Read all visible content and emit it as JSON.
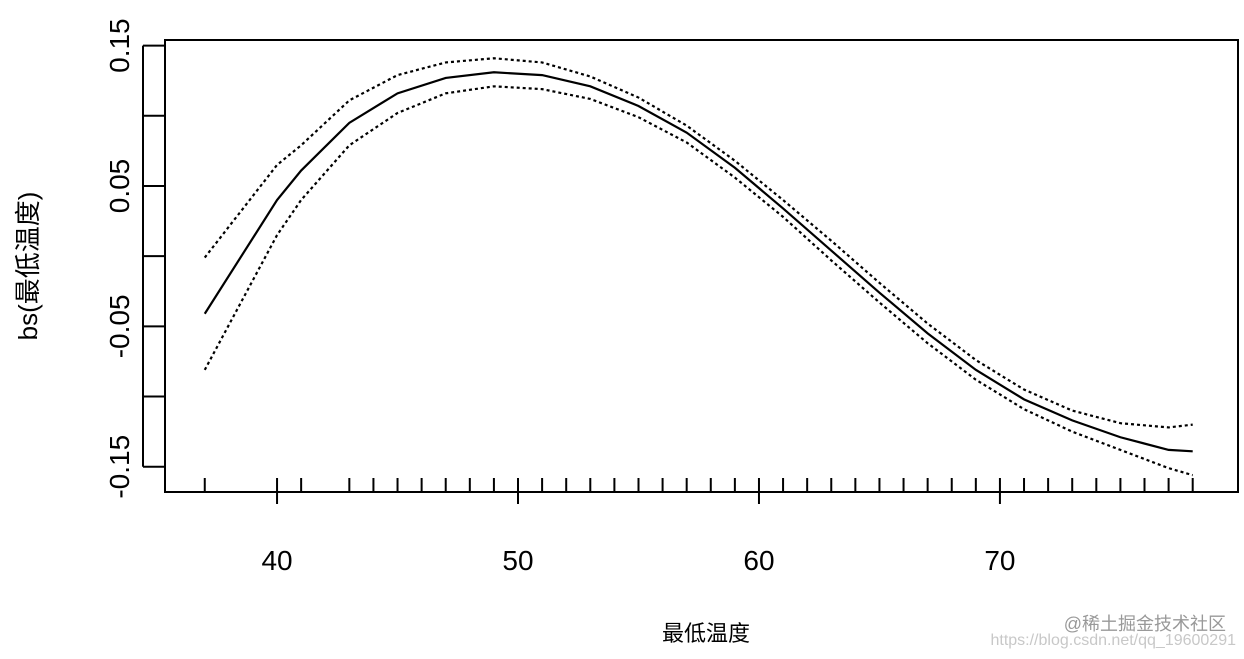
{
  "chart_data": {
    "type": "line",
    "xlabel": "最低温度",
    "ylabel": "bs(最低温度)",
    "x": [
      37,
      40,
      41,
      43,
      45,
      47,
      49,
      51,
      53,
      55,
      57,
      59,
      61,
      63,
      65,
      67,
      69,
      71,
      73,
      75,
      77,
      78
    ],
    "series": [
      {
        "color": "#000000",
        "style": "solid",
        "values": [
          -0.041,
          0.04,
          0.061,
          0.095,
          0.116,
          0.127,
          0.131,
          0.129,
          0.121,
          0.107,
          0.088,
          0.063,
          0.034,
          0.004,
          -0.026,
          -0.055,
          -0.081,
          -0.102,
          -0.117,
          -0.129,
          -0.138,
          -0.139
        ]
      },
      {
        "color": "#000000",
        "style": "dotted",
        "values": [
          -0.001,
          0.065,
          0.079,
          0.111,
          0.129,
          0.138,
          0.141,
          0.138,
          0.128,
          0.113,
          0.093,
          0.068,
          0.04,
          0.011,
          -0.019,
          -0.048,
          -0.074,
          -0.095,
          -0.11,
          -0.119,
          -0.122,
          -0.12
        ]
      },
      {
        "color": "#000000",
        "style": "dotted",
        "values": [
          -0.081,
          0.015,
          0.04,
          0.079,
          0.102,
          0.116,
          0.121,
          0.119,
          0.112,
          0.099,
          0.081,
          0.056,
          0.028,
          -0.003,
          -0.033,
          -0.062,
          -0.088,
          -0.109,
          -0.125,
          -0.138,
          -0.151,
          -0.156
        ]
      }
    ],
    "rug": [
      37,
      40,
      41,
      43,
      44,
      45,
      46,
      47,
      48,
      49,
      50,
      51,
      52,
      53,
      54,
      55,
      56,
      57,
      58,
      59,
      60,
      61,
      62,
      63,
      64,
      65,
      66,
      67,
      68,
      69,
      70,
      71,
      72,
      73,
      74,
      75,
      76,
      77,
      78
    ],
    "xlim": [
      35.35,
      79.88
    ],
    "ylim": [
      -0.168,
      0.154
    ],
    "xticks": [
      40,
      50,
      60,
      70
    ],
    "yticks": [
      -0.15,
      -0.05,
      0.05,
      0.15
    ],
    "yminorticks": [
      -0.1,
      0,
      0.1
    ],
    "watermark": [
      "https://blog.csdn.net/qq_19600291",
      "@稀土掘金技术社区"
    ]
  }
}
